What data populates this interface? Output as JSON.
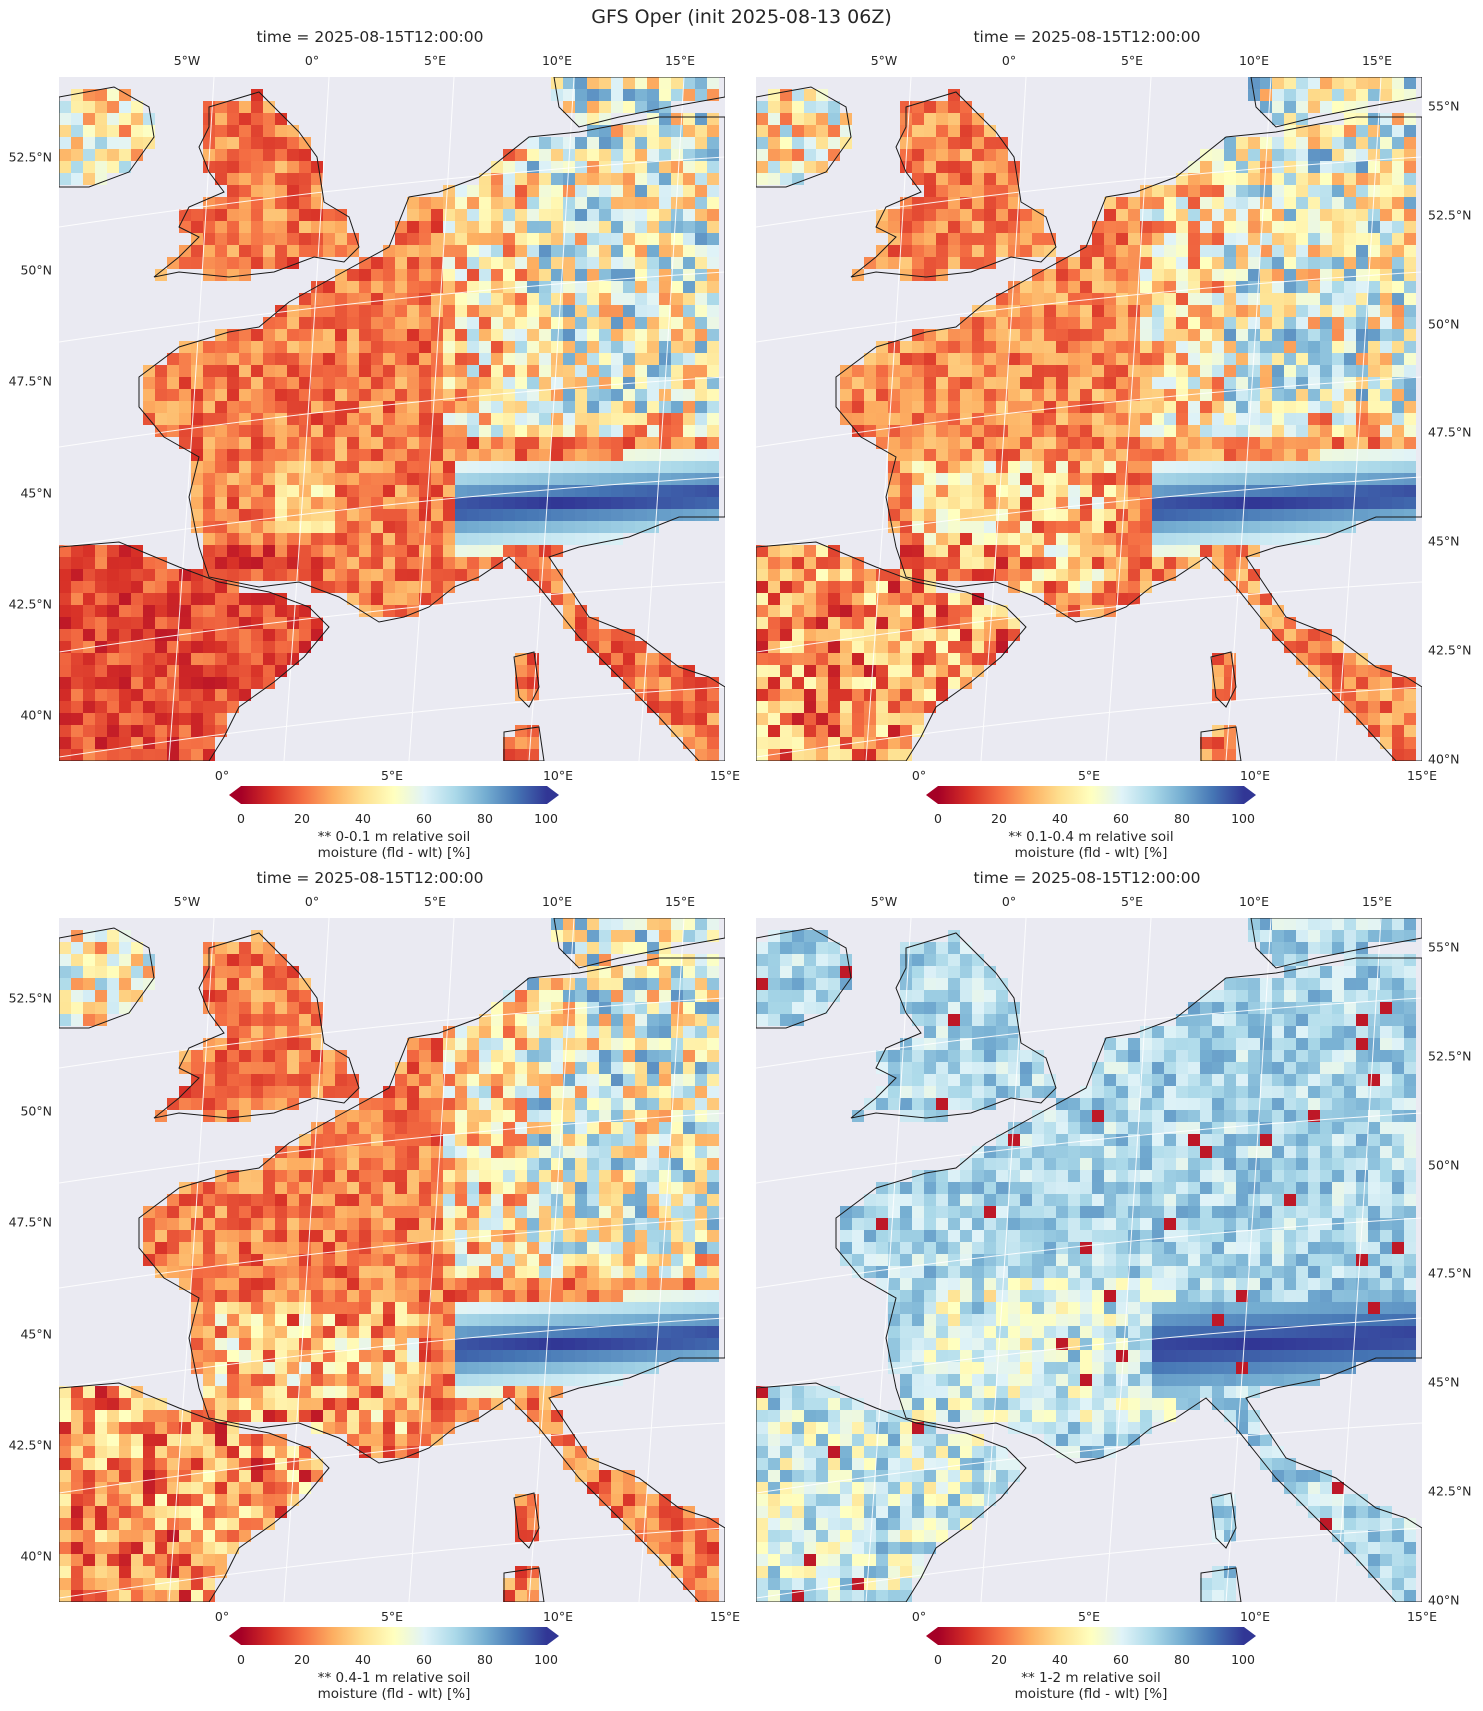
{
  "figure": {
    "suptitle": "GFS Oper (init 2025-08-13 06Z)"
  },
  "colormap": {
    "name": "RdYlBu",
    "stops": [
      "#a50026",
      "#d73027",
      "#f46d43",
      "#fdae61",
      "#fee090",
      "#ffffbf",
      "#e0f3f8",
      "#abd9e9",
      "#74add1",
      "#4575b4",
      "#313695"
    ],
    "ticks": [
      "0",
      "20",
      "40",
      "60",
      "80",
      "100"
    ],
    "range": [
      0,
      100
    ],
    "extend": "both"
  },
  "colors": {
    "map_background": "#eaeaf2",
    "gridline": "#ffffff",
    "coastline": "#1a1a1a"
  },
  "panels": [
    {
      "title": "time = 2025-08-15T12:00:00",
      "lon_ticks_top": [
        "5°W",
        "0°",
        "5°E",
        "10°E",
        "15°E"
      ],
      "lon_ticks_bottom": [
        "0°",
        "5°E",
        "10°E",
        "15°E"
      ],
      "lat_ticks": [
        "52.5°N",
        "50°N",
        "47.5°N",
        "45°N",
        "42.5°N",
        "40°N"
      ],
      "lat_side": "left",
      "colorbar_label": [
        "** 0-0.1 m relative soil",
        "moisture (fld - wlt) [%]"
      ],
      "profile": "topsoil"
    },
    {
      "title": "time = 2025-08-15T12:00:00",
      "lon_ticks_top": [
        "5°W",
        "0°",
        "5°E",
        "10°E",
        "15°E"
      ],
      "lon_ticks_bottom": [
        "0°",
        "5°E",
        "10°E",
        "15°E"
      ],
      "lat_ticks": [
        "55°N",
        "52.5°N",
        "50°N",
        "47.5°N",
        "45°N",
        "42.5°N",
        "40°N"
      ],
      "lat_side": "right",
      "colorbar_label": [
        "** 0.1-0.4 m relative soil",
        "moisture (fld - wlt) [%]"
      ],
      "profile": "shallow"
    },
    {
      "title": "time = 2025-08-15T12:00:00",
      "lon_ticks_top": [
        "5°W",
        "0°",
        "5°E",
        "10°E",
        "15°E"
      ],
      "lon_ticks_bottom": [
        "0°",
        "5°E",
        "10°E",
        "15°E"
      ],
      "lat_ticks": [
        "52.5°N",
        "50°N",
        "47.5°N",
        "45°N",
        "42.5°N",
        "40°N"
      ],
      "lat_side": "left",
      "colorbar_label": [
        "** 0.4-1 m relative soil",
        "moisture (fld - wlt) [%]"
      ],
      "profile": "mid"
    },
    {
      "title": "time = 2025-08-15T12:00:00",
      "lon_ticks_top": [
        "5°W",
        "0°",
        "5°E",
        "10°E",
        "15°E"
      ],
      "lon_ticks_bottom": [
        "0°",
        "5°E",
        "10°E",
        "15°E"
      ],
      "lat_ticks": [
        "55°N",
        "52.5°N",
        "50°N",
        "47.5°N",
        "45°N",
        "42.5°N",
        "40°N"
      ],
      "lat_side": "right",
      "colorbar_label": [
        "** 1-2 m relative soil",
        "moisture (fld - wlt) [%]"
      ],
      "profile": "deep"
    }
  ]
}
